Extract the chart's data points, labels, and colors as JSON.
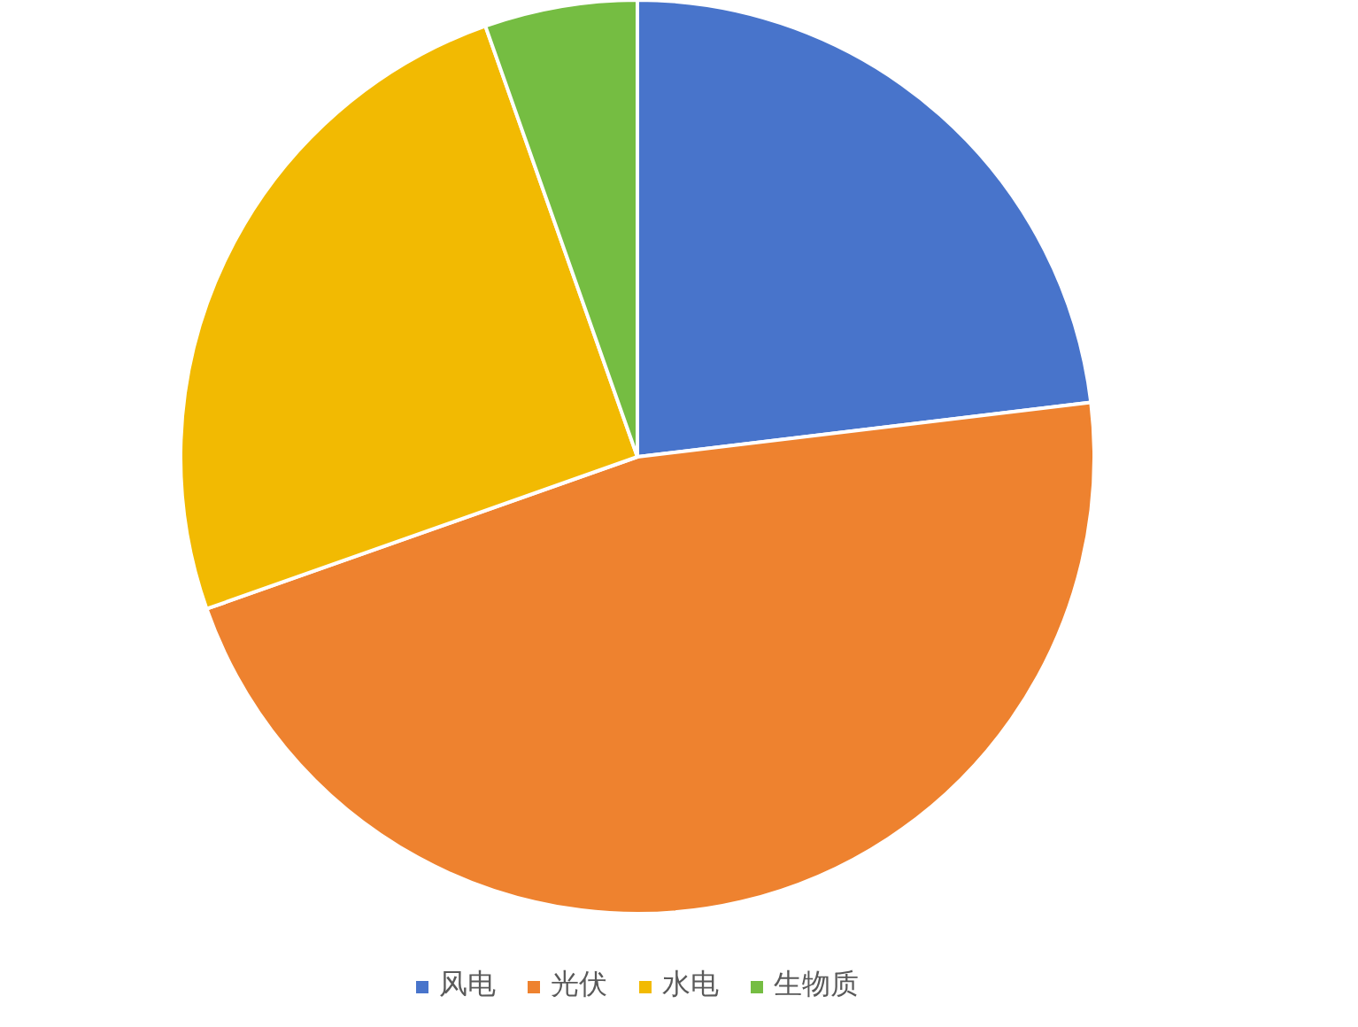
{
  "chart_data": {
    "type": "pie",
    "categories": [
      "风电",
      "光伏",
      "水电",
      "生物质"
    ],
    "values": [
      23.1,
      46.5,
      25.0,
      5.4
    ],
    "colors": [
      "#4874cb",
      "#ee822f",
      "#f2ba02",
      "#75bd42"
    ],
    "legend": "bottom"
  }
}
